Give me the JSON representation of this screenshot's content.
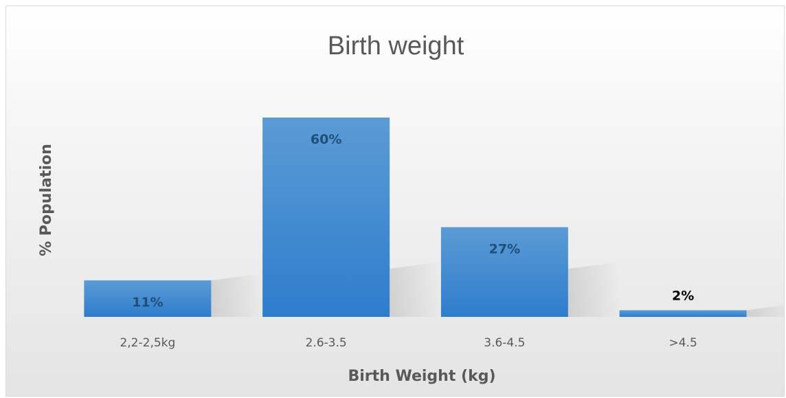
{
  "chart_data": {
    "type": "bar",
    "title": "Birth weight",
    "xlabel": "Birth Weight (kg)",
    "ylabel": "% Population",
    "categories": [
      "2,2-2,5kg",
      "2.6-3.5",
      "3.6-4.5",
      ">4.5"
    ],
    "values": [
      11,
      60,
      27,
      2
    ],
    "data_labels": [
      "11%",
      "60%",
      "27%",
      "2%"
    ],
    "ylim": [
      0,
      60
    ],
    "grid": false,
    "legend": "none",
    "colors": {
      "bar_top": "#5b9bd5",
      "bar_bottom": "#2e7dcc",
      "label_inside": "#1f4e79",
      "label_outside": "#000000"
    }
  }
}
